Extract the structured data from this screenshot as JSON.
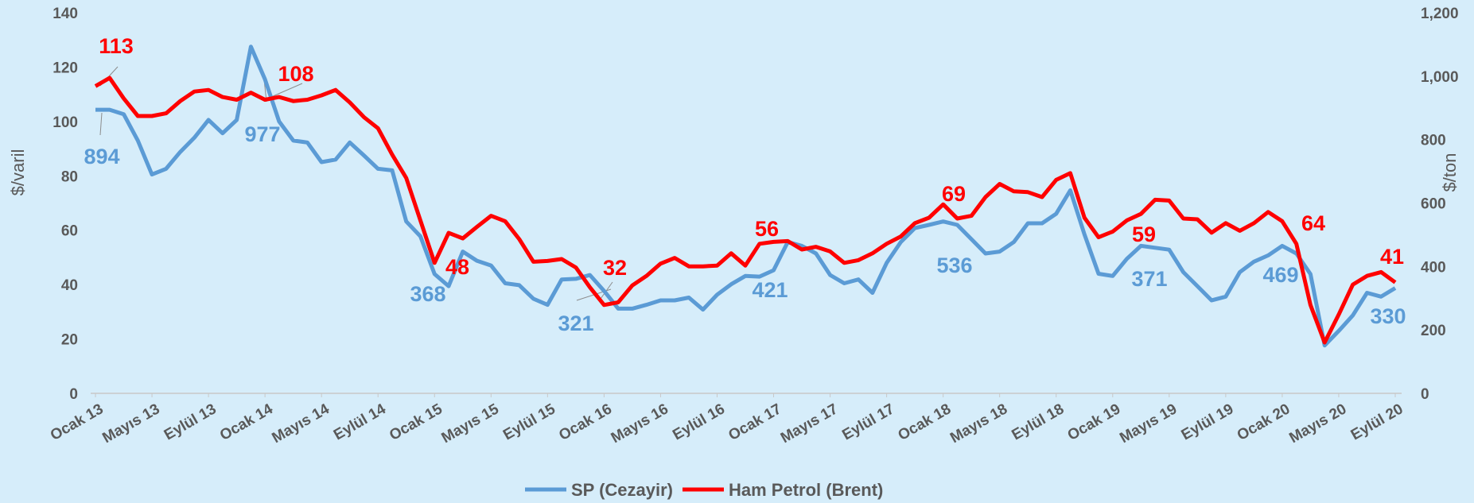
{
  "chart_data": {
    "type": "line",
    "ylabel": "$/varil",
    "y2label": "$/ton",
    "ylim": [
      0,
      140
    ],
    "yticks": [
      0,
      20,
      40,
      60,
      80,
      100,
      120,
      140
    ],
    "y2lim": [
      0,
      1200
    ],
    "y2ticks": [
      0,
      200,
      400,
      600,
      800,
      {
        "value": 1000,
        "label": "1,000"
      },
      {
        "value": 1200,
        "label": "1,200"
      }
    ],
    "legend": "bottom",
    "categories": [
      "Ocak 13",
      null,
      null,
      null,
      "Mayıs 13",
      null,
      null,
      null,
      "Eylül 13",
      null,
      null,
      null,
      "Ocak 14",
      null,
      null,
      null,
      "Mayıs 14",
      null,
      null,
      null,
      "Eylül 14",
      null,
      null,
      null,
      "Ocak 15",
      null,
      null,
      null,
      "Mayıs 15",
      null,
      null,
      null,
      "Eylül 15",
      null,
      null,
      null,
      "Ocak 16",
      null,
      null,
      null,
      "Mayıs 16",
      null,
      null,
      null,
      "Eylül 16",
      null,
      null,
      null,
      "Ocak 17",
      null,
      null,
      null,
      "Mayıs 17",
      null,
      null,
      null,
      "Eylül 17",
      null,
      null,
      null,
      "Ocak 18",
      null,
      null,
      null,
      "Mayıs 18",
      null,
      null,
      null,
      "Eylül 18",
      null,
      null,
      null,
      "Ocak 19",
      null,
      null,
      null,
      "Mayıs 19",
      null,
      null,
      null,
      "Eylül 19",
      null,
      null,
      null,
      "Ocak 20",
      null,
      null,
      null,
      "Mayıs 20",
      null,
      null,
      null,
      "Eylül 20"
    ],
    "series": [
      {
        "name": "SP (Cezayir)",
        "color": "#5b9bd5",
        "axis": "y2",
        "annotations": [
          "894",
          "977",
          "368",
          "321",
          "421",
          "536",
          "371",
          "469",
          "330"
        ],
        "values": [
          894,
          894,
          880,
          797,
          690,
          708,
          761,
          806,
          862,
          820,
          862,
          1093,
          990,
          857,
          797,
          791,
          729,
          737,
          791,
          750,
          708,
          703,
          542,
          495,
          376,
          338,
          447,
          418,
          403,
          347,
          341,
          298,
          279,
          359,
          361,
          373,
          323,
          267,
          267,
          279,
          293,
          293,
          302,
          264,
          311,
          344,
          370,
          368,
          388,
          477,
          465,
          441,
          373,
          347,
          359,
          317,
          411,
          477,
          521,
          531,
          542,
          531,
          486,
          441,
          447,
          477,
          536,
          536,
          566,
          640,
          501,
          377,
          370,
          424,
          465,
          459,
          453,
          382,
          338,
          293,
          305,
          382,
          415,
          435,
          465,
          441,
          376,
          151,
          197,
          246,
          317,
          305,
          332
        ]
      },
      {
        "name": "Ham Petrol (Brent)",
        "color": "#ff0000",
        "annotations": [
          "113",
          "108",
          "48",
          "32",
          "56",
          "69",
          "59",
          "64",
          "41"
        ],
        "values": [
          113,
          116,
          108.5,
          102,
          102,
          103,
          107.5,
          111,
          111.6,
          109,
          108,
          110.6,
          108,
          109,
          107.5,
          108,
          109.6,
          111.6,
          107,
          101.6,
          97.5,
          87.8,
          79.2,
          63.6,
          48,
          59,
          57,
          61.2,
          65.3,
          63.3,
          56.7,
          48.4,
          48.7,
          49.4,
          46.3,
          39,
          32.5,
          33.5,
          39.7,
          43.2,
          47.7,
          49.8,
          46.7,
          46.7,
          47,
          51.5,
          47,
          55,
          55.7,
          56,
          52.9,
          53.9,
          52.2,
          48,
          49,
          51.5,
          55,
          57.7,
          62.6,
          64.6,
          69.5,
          64.3,
          65.3,
          72.2,
          77,
          74.3,
          74,
          72.2,
          78.5,
          81,
          64.6,
          57.4,
          59.5,
          63.6,
          66,
          71.2,
          70.9,
          64.3,
          64,
          59.1,
          62.6,
          59.8,
          62.6,
          66.7,
          63.3,
          55,
          32.5,
          18.7,
          29,
          40,
          43.2,
          44.6,
          40.8
        ]
      }
    ]
  }
}
